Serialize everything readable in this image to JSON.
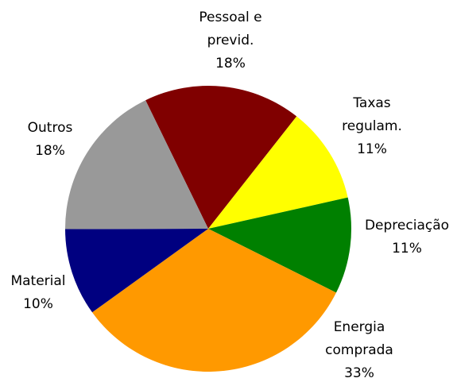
{
  "chart_data": {
    "type": "pie",
    "categories": [
      "Pessoal e\nprevid.",
      "Taxas\nregulam.",
      "Depreciação",
      "Energia\ncomprada",
      "Material",
      "Outros"
    ],
    "values": [
      18,
      11,
      11,
      33,
      10,
      18
    ],
    "value_labels": [
      "18%",
      "11%",
      "11%",
      "33%",
      "10%",
      "18%"
    ],
    "colors": [
      "#800000",
      "#ffff00",
      "#008000",
      "#ff9900",
      "#000080",
      "#999999"
    ]
  }
}
